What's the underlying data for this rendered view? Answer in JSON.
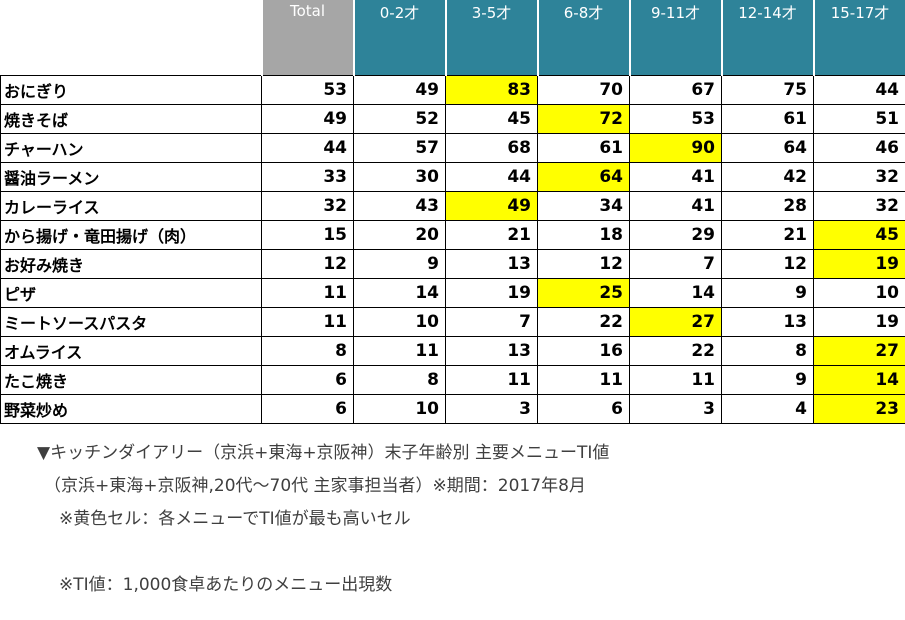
{
  "chart_data": {
    "type": "table",
    "title": "▼キッチンダイアリー（京浜+東海+京阪神）末子年齢別 主要メニューTI値",
    "columns": [
      "Total",
      "0-2才",
      "3-5才",
      "6-8才",
      "9-11才",
      "12-14才",
      "15-17才"
    ],
    "rows": [
      {
        "label": "おにぎり",
        "values": [
          53,
          49,
          83,
          70,
          67,
          75,
          44
        ],
        "highlight": 2
      },
      {
        "label": "焼きそば",
        "values": [
          49,
          52,
          45,
          72,
          53,
          61,
          51
        ],
        "highlight": 3
      },
      {
        "label": "チャーハン",
        "values": [
          44,
          57,
          68,
          61,
          90,
          64,
          46
        ],
        "highlight": 4
      },
      {
        "label": "醤油ラーメン",
        "values": [
          33,
          30,
          44,
          64,
          41,
          42,
          32
        ],
        "highlight": 3
      },
      {
        "label": "カレーライス",
        "values": [
          32,
          43,
          49,
          34,
          41,
          28,
          32
        ],
        "highlight": 2
      },
      {
        "label": "から揚げ・竜田揚げ（肉）",
        "values": [
          15,
          20,
          21,
          18,
          29,
          21,
          45
        ],
        "highlight": 6
      },
      {
        "label": "お好み焼き",
        "values": [
          12,
          9,
          13,
          12,
          7,
          12,
          19
        ],
        "highlight": 6
      },
      {
        "label": "ピザ",
        "values": [
          11,
          14,
          19,
          25,
          14,
          9,
          10
        ],
        "highlight": 3
      },
      {
        "label": "ミートソースパスタ",
        "values": [
          11,
          10,
          7,
          22,
          27,
          13,
          19
        ],
        "highlight": 4
      },
      {
        "label": "オムライス",
        "values": [
          8,
          11,
          13,
          16,
          22,
          8,
          27
        ],
        "highlight": 6
      },
      {
        "label": "たこ焼き",
        "values": [
          6,
          8,
          11,
          11,
          11,
          9,
          14
        ],
        "highlight": 6
      },
      {
        "label": "野菜炒め",
        "values": [
          6,
          10,
          3,
          6,
          3,
          4,
          23
        ],
        "highlight": 6
      }
    ],
    "highlight_rule": "黄色セル＝各メニュー行でTI値が最も高いセル",
    "legend_position": "none",
    "grid": true
  },
  "notes": [
    "（京浜+東海+京阪神,20代～70代 主家事担当者）※期間：2017年8月",
    "※黄色セル：各メニューでTI値が最も高いセル",
    "※TI値：1,000食卓あたりのメニュー出現数"
  ],
  "colors": {
    "header_total_bg": "#A6A6A6",
    "header_age_bg": "#2E8399",
    "header_text": "#FFFFFF",
    "highlight_bg": "#FFFF00",
    "cell_border": "#000000",
    "value_text": "#000000",
    "note_text": "#3F3F3F"
  }
}
